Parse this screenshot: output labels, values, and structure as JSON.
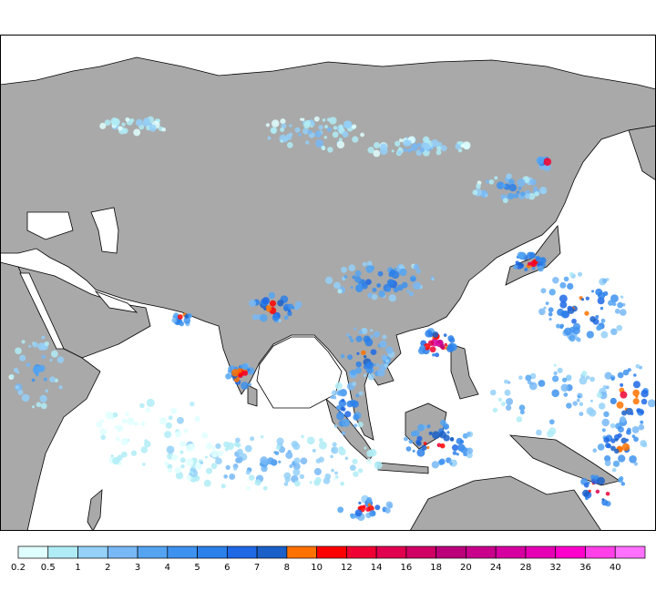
{
  "map": {
    "ocean_color": "#ffffff",
    "land_color": "#a9a9a9",
    "border_color": "#000000"
  },
  "colorbar": {
    "labels": [
      "0.2",
      "0.5",
      "1",
      "2",
      "3",
      "4",
      "5",
      "6",
      "7",
      "8",
      "10",
      "12",
      "14",
      "16",
      "18",
      "20",
      "24",
      "28",
      "32",
      "36",
      "40"
    ],
    "colors": [
      "#e0ffff",
      "#b0ecf6",
      "#94d0f8",
      "#78b8f6",
      "#54a4f2",
      "#3e92ef",
      "#2c80ea",
      "#1f68e6",
      "#1a60c8",
      "#ff7200",
      "#ff0000",
      "#f00032",
      "#e0004e",
      "#d00064",
      "#bb007a",
      "#c8008c",
      "#d600a0",
      "#e600b4",
      "#ff00cc",
      "#ff40e8",
      "#ff70ff"
    ]
  }
}
